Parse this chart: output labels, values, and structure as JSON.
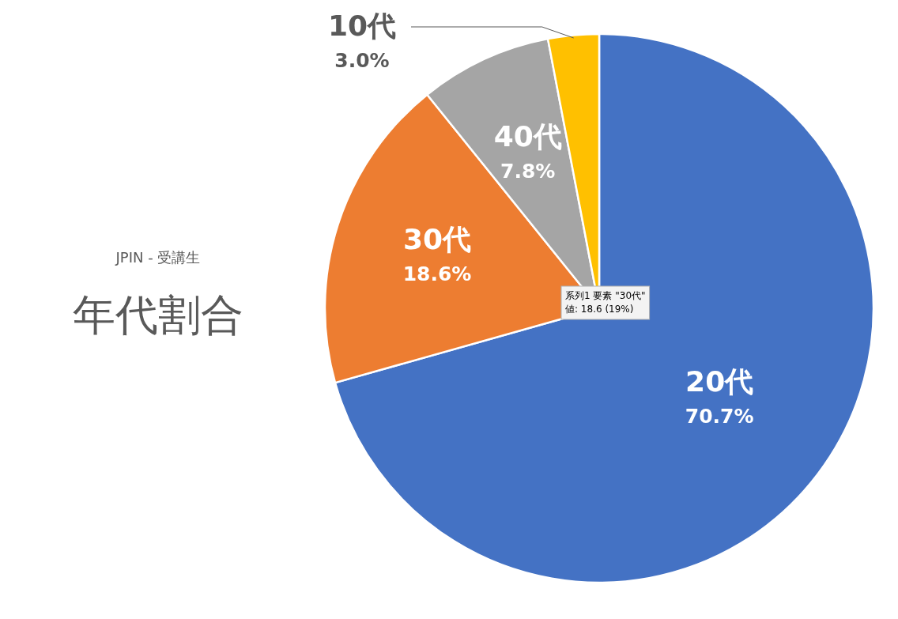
{
  "chart_data": {
    "type": "pie",
    "title": "年代割合",
    "subtitle": "JPIN - 受講生",
    "categories": [
      "20代",
      "30代",
      "40代",
      "10代"
    ],
    "values": [
      70.7,
      18.6,
      7.8,
      3.0
    ],
    "colors": [
      "#4472c4",
      "#ed7d31",
      "#a5a5a5",
      "#ffc000"
    ],
    "value_labels": [
      "70.7%",
      "18.6%",
      "7.8%",
      "3.0%"
    ],
    "annotations": [
      "系列1 要素 \"30代\"\n値: 18.6 (19%)"
    ]
  }
}
